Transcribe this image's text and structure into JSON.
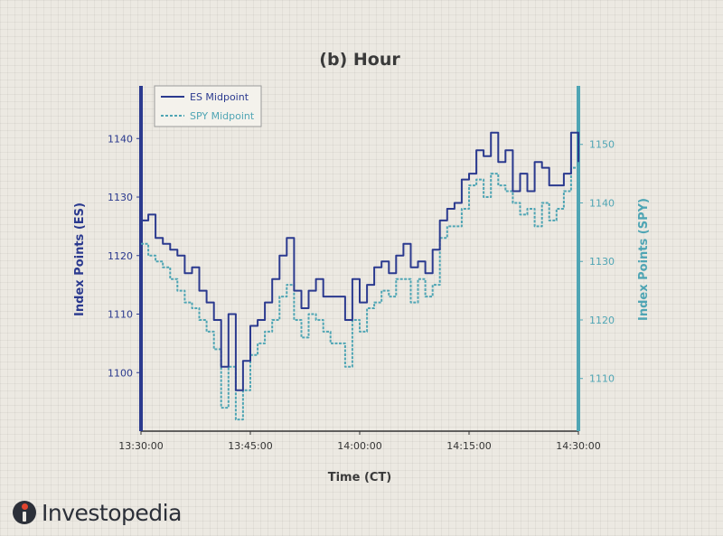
{
  "colors": {
    "es": "#2b3a8f",
    "spy": "#4fa5b4",
    "text": "#3a3a3a"
  },
  "brand": {
    "name": "Investopedia"
  },
  "chart_data": {
    "type": "line",
    "title": "(b) Hour",
    "xlabel": "Time (CT)",
    "ylabel_left": "Index Points (ES)",
    "ylabel_right": "Index Points (SPY)",
    "x_ticks": [
      "13:30:00",
      "13:45:00",
      "14:00:00",
      "14:15:00",
      "14:30:00"
    ],
    "x_range_minutes": [
      0,
      60
    ],
    "y_left_ticks": [
      1100,
      1110,
      1120,
      1130,
      1140
    ],
    "y_left_range": [
      1090,
      1149
    ],
    "y_right_ticks": [
      1110,
      1120,
      1130,
      1140,
      1150
    ],
    "y_right_range": [
      1101,
      1160
    ],
    "grid": false,
    "legend_position": "top-left",
    "series": [
      {
        "name": "ES Midpoint",
        "axis": "left",
        "style": "solid",
        "x": [
          0,
          1,
          2,
          3,
          4,
          5,
          6,
          7,
          8,
          9,
          10,
          11,
          12,
          13,
          14,
          15,
          16,
          17,
          18,
          19,
          20,
          21,
          22,
          23,
          24,
          25,
          26,
          27,
          28,
          29,
          30,
          31,
          32,
          33,
          34,
          35,
          36,
          37,
          38,
          39,
          40,
          41,
          42,
          43,
          44,
          45,
          46,
          47,
          48,
          49,
          50,
          51,
          52,
          53,
          54,
          55,
          56,
          57,
          58,
          59,
          60
        ],
        "values": [
          1126,
          1127,
          1123,
          1122,
          1121,
          1120,
          1117,
          1118,
          1114,
          1112,
          1109,
          1101,
          1110,
          1097,
          1102,
          1108,
          1109,
          1112,
          1116,
          1120,
          1123,
          1114,
          1111,
          1114,
          1116,
          1113,
          1113,
          1113,
          1109,
          1116,
          1112,
          1115,
          1118,
          1119,
          1117,
          1120,
          1122,
          1118,
          1119,
          1117,
          1121,
          1126,
          1128,
          1129,
          1133,
          1134,
          1138,
          1137,
          1141,
          1136,
          1138,
          1131,
          1134,
          1131,
          1136,
          1135,
          1132,
          1132,
          1134,
          1141,
          1136
        ]
      },
      {
        "name": "SPY Midpoint",
        "axis": "right",
        "style": "dashed",
        "x": [
          0,
          1,
          2,
          3,
          4,
          5,
          6,
          7,
          8,
          9,
          10,
          11,
          12,
          13,
          14,
          15,
          16,
          17,
          18,
          19,
          20,
          21,
          22,
          23,
          24,
          25,
          26,
          27,
          28,
          29,
          30,
          31,
          32,
          33,
          34,
          35,
          36,
          37,
          38,
          39,
          40,
          41,
          42,
          43,
          44,
          45,
          46,
          47,
          48,
          49,
          50,
          51,
          52,
          53,
          54,
          55,
          56,
          57,
          58,
          59,
          60
        ],
        "values": [
          1133,
          1131,
          1130,
          1129,
          1127,
          1125,
          1123,
          1122,
          1120,
          1118,
          1115,
          1105,
          1112,
          1103,
          1108,
          1114,
          1116,
          1118,
          1120,
          1124,
          1126,
          1120,
          1117,
          1121,
          1120,
          1118,
          1116,
          1116,
          1112,
          1120,
          1118,
          1122,
          1123,
          1125,
          1124,
          1127,
          1127,
          1123,
          1127,
          1124,
          1126,
          1134,
          1136,
          1136,
          1139,
          1143,
          1144,
          1141,
          1145,
          1143,
          1142,
          1140,
          1138,
          1139,
          1136,
          1140,
          1137,
          1139,
          1142,
          1146,
          1143
        ]
      }
    ]
  }
}
